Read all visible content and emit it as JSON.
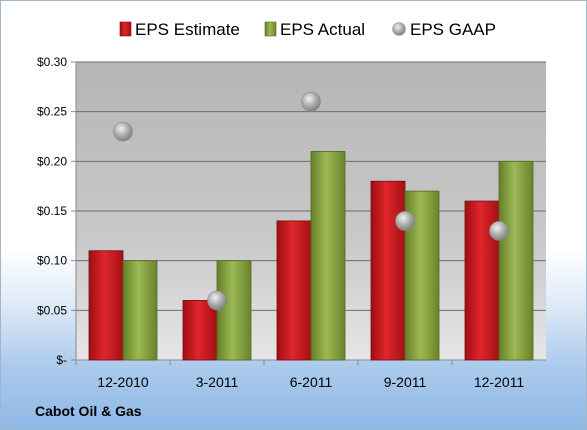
{
  "company": "Cabot Oil & Gas",
  "colors": {
    "estimate": "#c0171c",
    "actual": "#7e9a3a",
    "gaap": "#a8a8a8"
  },
  "chart_data": {
    "type": "bar",
    "categories": [
      "12-2010",
      "3-2011",
      "6-2011",
      "9-2011",
      "12-2011"
    ],
    "series": [
      {
        "name": "EPS Estimate",
        "type": "bar",
        "values": [
          0.11,
          0.06,
          0.14,
          0.18,
          0.16
        ]
      },
      {
        "name": "EPS Actual",
        "type": "bar",
        "values": [
          0.1,
          0.1,
          0.21,
          0.17,
          0.2
        ]
      },
      {
        "name": "EPS GAAP",
        "type": "scatter",
        "values": [
          0.23,
          0.06,
          0.26,
          0.14,
          0.13
        ]
      }
    ],
    "yticks": [
      "$-",
      "$0.05",
      "$0.10",
      "$0.15",
      "$0.20",
      "$0.25",
      "$0.30"
    ],
    "ylim": [
      0,
      0.3
    ],
    "grid": true,
    "legend": "top"
  }
}
